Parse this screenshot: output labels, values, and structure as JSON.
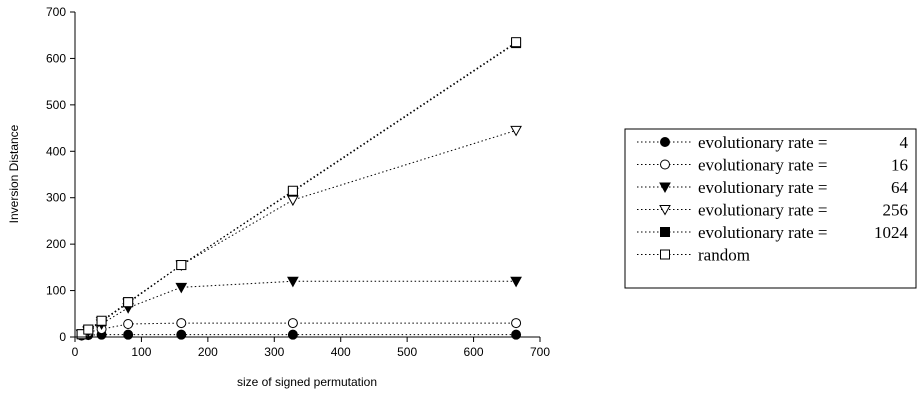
{
  "chart_data": {
    "type": "line",
    "xlabel": "size of signed permutation",
    "ylabel": "Inversion Distance",
    "xlim": [
      0,
      700
    ],
    "ylim": [
      0,
      700
    ],
    "xticks": [
      0,
      100,
      200,
      300,
      400,
      500,
      600,
      700
    ],
    "yticks": [
      0,
      100,
      200,
      300,
      400,
      500,
      600,
      700
    ],
    "grid": false,
    "legend_position": "right",
    "x": [
      10,
      20,
      40,
      80,
      160,
      328,
      664
    ],
    "series": [
      {
        "name": "evolutionary rate =",
        "rate": "4",
        "marker": "filled-circle",
        "values": [
          3,
          4,
          5,
          5,
          5,
          5,
          5
        ]
      },
      {
        "name": "evolutionary rate =",
        "rate": "16",
        "marker": "open-circle",
        "values": [
          5,
          10,
          17,
          28,
          30,
          30,
          30
        ]
      },
      {
        "name": "evolutionary rate =",
        "rate": "64",
        "marker": "filled-triangle-down",
        "values": [
          6,
          12,
          28,
          63,
          107,
          120,
          120
        ]
      },
      {
        "name": "evolutionary rate =",
        "rate": "256",
        "marker": "open-triangle-down",
        "values": [
          6,
          14,
          33,
          73,
          155,
          295,
          445
        ]
      },
      {
        "name": "evolutionary rate =",
        "rate": "1024",
        "marker": "filled-square",
        "values": [
          6,
          16,
          34,
          75,
          155,
          313,
          633
        ]
      },
      {
        "name": "random",
        "rate": "",
        "marker": "open-square",
        "values": [
          6,
          16,
          35,
          75,
          155,
          315,
          635
        ]
      }
    ]
  }
}
